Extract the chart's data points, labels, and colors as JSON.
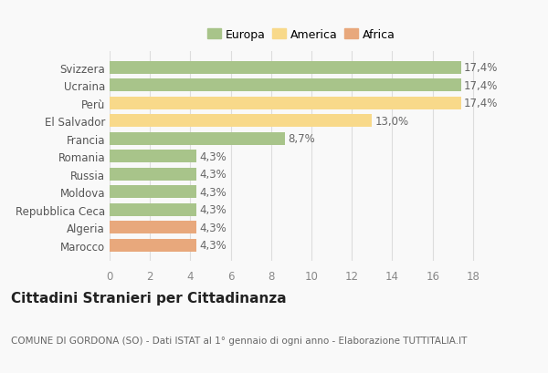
{
  "categories": [
    "Marocco",
    "Algeria",
    "Repubblica Ceca",
    "Moldova",
    "Russia",
    "Romania",
    "Francia",
    "El Salvador",
    "Perù",
    "Ucraina",
    "Svizzera"
  ],
  "values": [
    4.3,
    4.3,
    4.3,
    4.3,
    4.3,
    4.3,
    8.7,
    13.0,
    17.4,
    17.4,
    17.4
  ],
  "colors": [
    "#e8a87c",
    "#e8a87c",
    "#a8c48a",
    "#a8c48a",
    "#a8c48a",
    "#a8c48a",
    "#a8c48a",
    "#f8d98a",
    "#f8d98a",
    "#a8c48a",
    "#a8c48a"
  ],
  "labels": [
    "4,3%",
    "4,3%",
    "4,3%",
    "4,3%",
    "4,3%",
    "4,3%",
    "8,7%",
    "13,0%",
    "17,4%",
    "17,4%",
    "17,4%"
  ],
  "legend": [
    {
      "label": "Europa",
      "color": "#a8c48a"
    },
    {
      "label": "America",
      "color": "#f8d98a"
    },
    {
      "label": "Africa",
      "color": "#e8a87c"
    }
  ],
  "xlim": [
    0,
    19
  ],
  "xticks": [
    0,
    2,
    4,
    6,
    8,
    10,
    12,
    14,
    16,
    18
  ],
  "title": "Cittadini Stranieri per Cittadinanza",
  "subtitle": "COMUNE DI GORDONA (SO) - Dati ISTAT al 1° gennaio di ogni anno - Elaborazione TUTTITALIA.IT",
  "background_color": "#f9f9f9",
  "grid_color": "#dddddd",
  "bar_height": 0.72,
  "label_fontsize": 8.5,
  "title_fontsize": 11,
  "subtitle_fontsize": 7.5,
  "tick_fontsize": 8.5,
  "legend_fontsize": 9
}
